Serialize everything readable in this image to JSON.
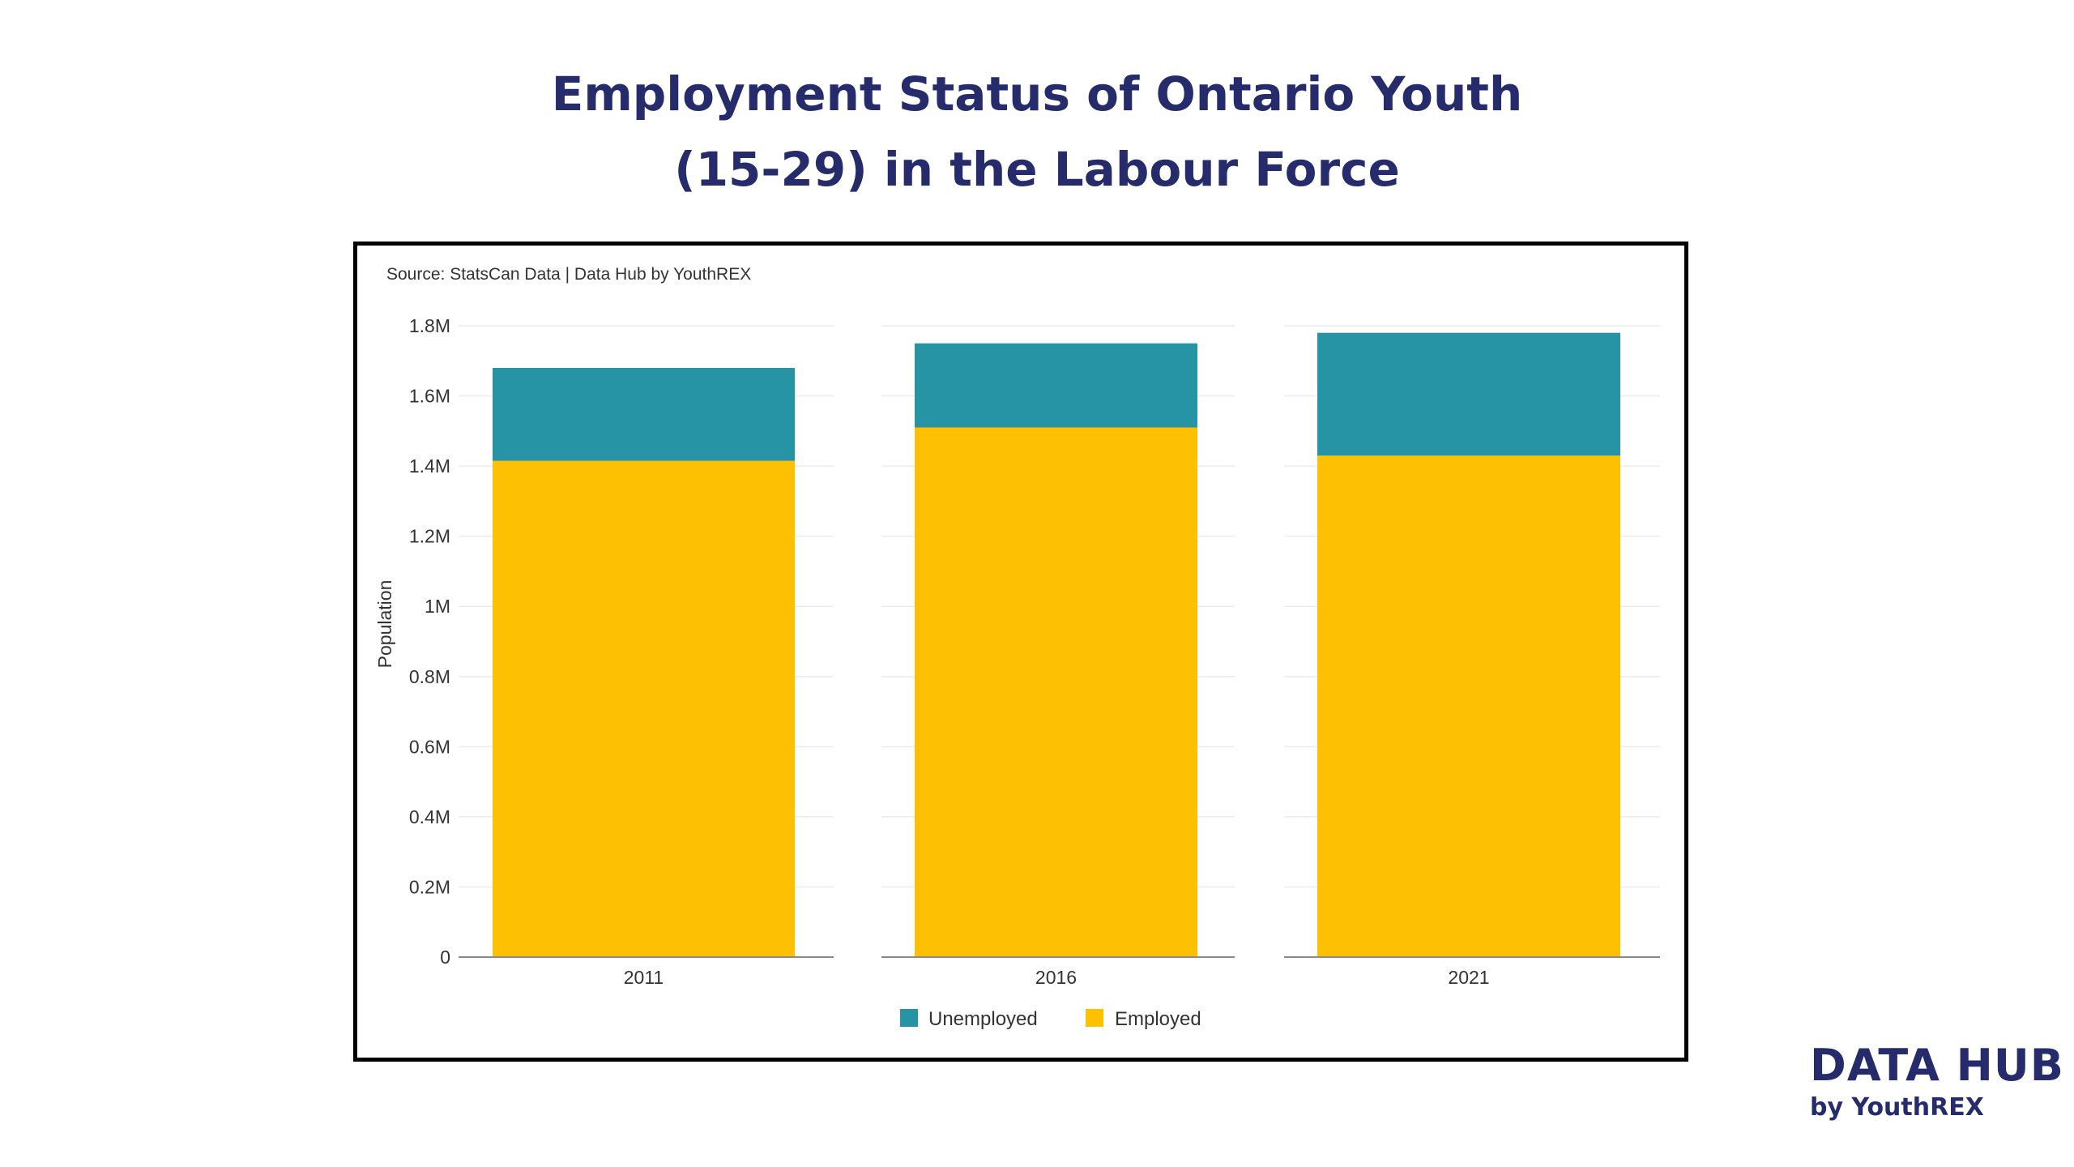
{
  "title_lines": [
    "Employment Status of Ontario Youth",
    "(15-29) in the Labour Force"
  ],
  "source": "Source: StatsCan Data | Data Hub by YouthREX",
  "brand": {
    "name": "DATA HUB",
    "sub": "by YouthREX"
  },
  "colors": {
    "title": "#252b6b",
    "employed": "#fdc003",
    "unemployed": "#2794a6",
    "grid": "#ececec",
    "axis": "#8a8a8a",
    "text": "#333333"
  },
  "chart_data": {
    "type": "bar",
    "stacked": true,
    "categories": [
      "2011",
      "2016",
      "2021"
    ],
    "series": [
      {
        "name": "Employed",
        "values": [
          1415000,
          1510000,
          1430000
        ]
      },
      {
        "name": "Unemployed",
        "values": [
          265000,
          240000,
          350000
        ]
      }
    ],
    "legend_order": [
      "Unemployed",
      "Employed"
    ],
    "legend_position": "bottom",
    "ylabel": "Population",
    "xlabel": "",
    "ylim": [
      0,
      1800000
    ],
    "yticks": [
      0,
      200000,
      400000,
      600000,
      800000,
      1000000,
      1200000,
      1400000,
      1600000,
      1800000
    ],
    "ytick_labels": [
      "0",
      "0.2M",
      "0.4M",
      "0.6M",
      "0.8M",
      "1M",
      "1.2M",
      "1.4M",
      "1.6M",
      "1.8M"
    ],
    "grid": true
  }
}
